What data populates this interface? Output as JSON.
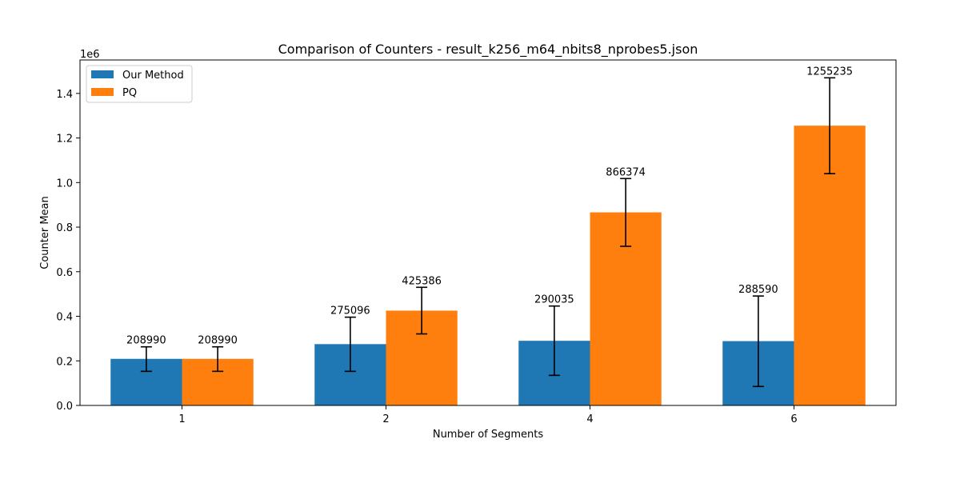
{
  "chart_data": {
    "type": "bar",
    "title": "Comparison of Counters - result_k256_m64_nbits8_nprobes5.json",
    "xlabel": "Number of Segments",
    "ylabel": "Counter Mean",
    "y_scale_label": "1e6",
    "categories": [
      "1",
      "2",
      "4",
      "6"
    ],
    "ylim": [
      0,
      1.55
    ],
    "y_ticks": [
      0.0,
      0.2,
      0.4,
      0.6,
      0.8,
      1.0,
      1.2,
      1.4
    ],
    "y_tick_labels": [
      "0.0",
      "0.2",
      "0.4",
      "0.6",
      "0.8",
      "1.0",
      "1.2",
      "1.4"
    ],
    "grid": false,
    "legend_position": "top-left",
    "series": [
      {
        "name": "Our Method",
        "color": "#1f77b4",
        "values": [
          208990,
          275096,
          290035,
          288590
        ],
        "labels": [
          "208990",
          "275096",
          "290035",
          "288590"
        ],
        "err_low": [
          153000,
          153000,
          135000,
          85000
        ],
        "err_high": [
          263000,
          396000,
          446000,
          491000
        ]
      },
      {
        "name": "PQ",
        "color": "#ff7f0e",
        "values": [
          208990,
          425386,
          866374,
          1255235
        ],
        "labels": [
          "208990",
          "425386",
          "866374",
          "1255235"
        ],
        "err_low": [
          153000,
          321000,
          714000,
          1040000
        ],
        "err_high": [
          263000,
          530000,
          1018000,
          1470000
        ]
      }
    ]
  }
}
